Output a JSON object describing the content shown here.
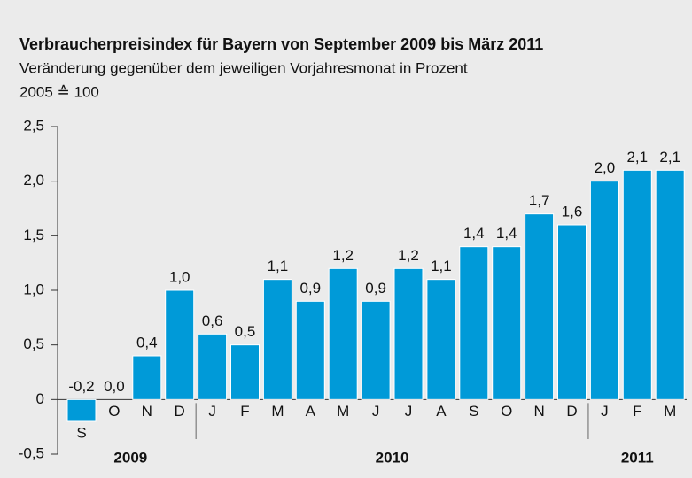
{
  "chart_data": {
    "type": "bar",
    "title": "Verbraucherpreisindex für Bayern von September 2009 bis März 2011",
    "subtitle": "Veränderung gegenüber dem jeweiligen Vorjahresmonat in Prozent",
    "note": "2005 ≙ 100",
    "categories": [
      "S",
      "O",
      "N",
      "D",
      "J",
      "F",
      "M",
      "A",
      "M",
      "J",
      "J",
      "A",
      "S",
      "O",
      "N",
      "D",
      "J",
      "F",
      "M"
    ],
    "values": [
      -0.2,
      0.0,
      0.4,
      1.0,
      0.6,
      0.5,
      1.1,
      0.9,
      1.2,
      0.9,
      1.2,
      1.1,
      1.4,
      1.4,
      1.7,
      1.6,
      2.0,
      2.1,
      2.1
    ],
    "value_labels": [
      "-0,2",
      "0,0",
      "0,4",
      "1,0",
      "0,6",
      "0,5",
      "1,1",
      "0,9",
      "1,2",
      "0,9",
      "1,2",
      "1,1",
      "1,4",
      "1,4",
      "1,7",
      "1,6",
      "2,0",
      "2,1",
      "2,1"
    ],
    "groups": [
      {
        "label": "2009",
        "size": 4
      },
      {
        "label": "2010",
        "size": 12
      },
      {
        "label": "2011",
        "size": 3
      }
    ],
    "color": "#009ad8",
    "ylim": [
      -0.5,
      2.5
    ],
    "yticks": [
      {
        "value": -0.5,
        "label": "-0,5"
      },
      0,
      {
        "value": 0.5,
        "label": "0,5"
      },
      {
        "value": 1.0,
        "label": "1,0"
      },
      {
        "value": 1.5,
        "label": "1,5"
      },
      {
        "value": 2.0,
        "label": "2,0"
      },
      {
        "value": 2.5,
        "label": "2,5"
      }
    ]
  }
}
